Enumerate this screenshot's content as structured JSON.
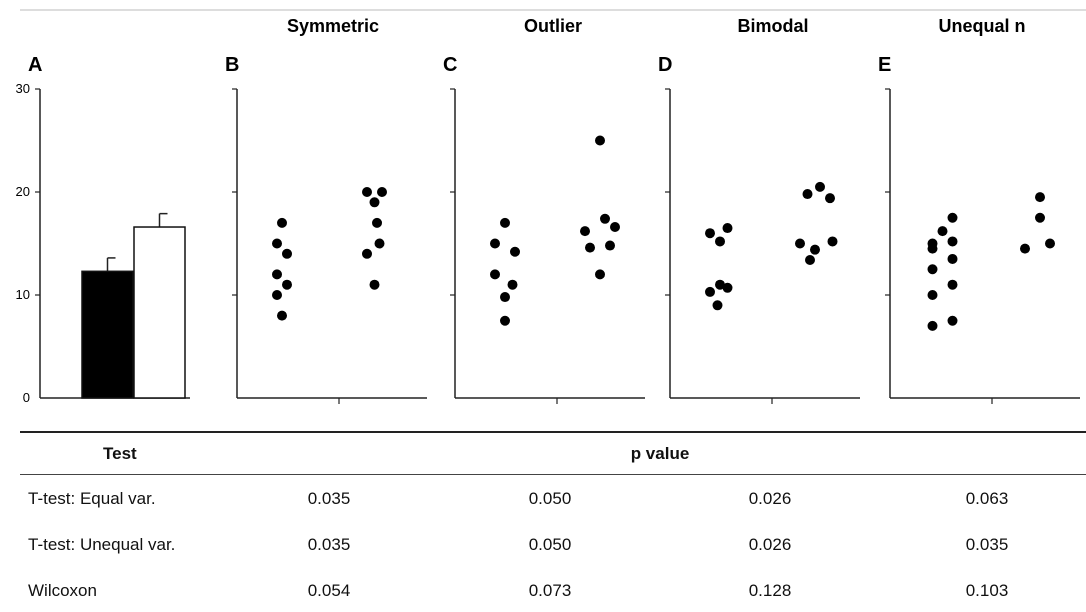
{
  "chart_data": [
    {
      "panel": "A",
      "type": "bar",
      "title": "",
      "ylim": [
        0,
        30
      ],
      "yticks": [
        0,
        10,
        20,
        30
      ],
      "bars": [
        {
          "value": 12.3,
          "error": 1.3,
          "fill": "#000000"
        },
        {
          "value": 16.6,
          "error": 1.3,
          "fill": "#ffffff"
        }
      ]
    },
    {
      "panel": "B",
      "type": "scatter",
      "title": "Symmetric",
      "ylim": [
        0,
        30
      ],
      "groups": [
        {
          "x": [
            0.1,
            0.2,
            0.3,
            0.1,
            0.3,
            0.1,
            0.2
          ],
          "y": [
            15,
            17,
            14,
            12,
            11,
            10,
            8
          ]
        },
        {
          "x": [
            0.1,
            0.25,
            0.4,
            0.3,
            0.1,
            0.35,
            0.25
          ],
          "y": [
            20,
            19,
            20,
            17,
            14,
            15,
            11
          ]
        }
      ]
    },
    {
      "panel": "C",
      "type": "scatter",
      "title": "Outlier",
      "ylim": [
        0,
        30
      ],
      "groups": [
        {
          "x": [
            0.1,
            0.3,
            0.5,
            0.1,
            0.45,
            0.3,
            0.3
          ],
          "y": [
            15,
            17,
            14.2,
            12,
            11,
            9.8,
            7.5
          ]
        },
        {
          "x": [
            0.4,
            0.1,
            0.5,
            0.7,
            0.2,
            0.6,
            0.4
          ],
          "y": [
            25,
            16.2,
            17.4,
            16.6,
            14.6,
            14.8,
            12
          ]
        }
      ]
    },
    {
      "panel": "D",
      "type": "scatter",
      "title": "Bimodal",
      "ylim": [
        0,
        30
      ],
      "groups": [
        {
          "x": [
            0.1,
            0.3,
            0.45,
            0.1,
            0.3,
            0.45,
            0.25
          ],
          "y": [
            16,
            15.2,
            16.5,
            10.3,
            11,
            10.7,
            9
          ]
        },
        {
          "x": [
            0.25,
            0.5,
            0.7,
            0.1,
            0.4,
            0.75,
            0.3
          ],
          "y": [
            19.8,
            20.5,
            19.4,
            15,
            14.4,
            15.2,
            13.4
          ]
        }
      ]
    },
    {
      "panel": "E",
      "type": "scatter",
      "title": "Unequal n",
      "ylim": [
        0,
        30
      ],
      "groups": [
        {
          "x": [
            0.35,
            0.55,
            0.15,
            0.55,
            0.15,
            0.55,
            0.15,
            0.55,
            0.15,
            0.55,
            0.15
          ],
          "y": [
            16.2,
            17.5,
            15,
            15.2,
            12.5,
            13.5,
            10,
            11,
            7,
            7.5,
            14.5
          ]
        },
        {
          "x": [
            0.5,
            0.5,
            0.2,
            0.7
          ],
          "y": [
            19.5,
            17.5,
            14.5,
            15
          ]
        }
      ]
    }
  ],
  "table": {
    "headers": {
      "test": "Test",
      "pvalue": "p value"
    },
    "rows": [
      {
        "name": "T-test: Equal var.",
        "values": [
          "0.035",
          "0.050",
          "0.026",
          "0.063"
        ]
      },
      {
        "name": "T-test: Unequal var.",
        "values": [
          "0.035",
          "0.050",
          "0.026",
          "0.035"
        ]
      },
      {
        "name": "Wilcoxon",
        "values": [
          "0.054",
          "0.073",
          "0.128",
          "0.103"
        ]
      }
    ]
  }
}
